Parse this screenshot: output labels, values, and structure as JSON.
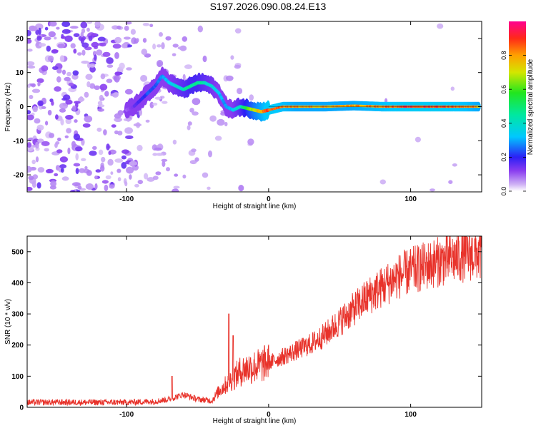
{
  "title": "S197.2026.090.08.24.E13",
  "chart_data": [
    {
      "type": "heatmap",
      "xlabel": "Height of straight line (km)",
      "ylabel": "Frequency (Hz)",
      "xlim": [
        -170,
        150
      ],
      "ylim": [
        -25,
        25
      ],
      "xticks": [
        -100,
        0,
        100
      ],
      "xtick_labels": [
        "-100",
        "0",
        "100"
      ],
      "yticks": [
        -20,
        -10,
        0,
        10,
        20
      ],
      "ytick_labels": [
        "-20",
        "-10",
        "0",
        "10",
        "20"
      ],
      "colorbar": {
        "label": "Normalized spectral amplitude",
        "range": [
          0,
          1
        ],
        "ticks": [
          0.0,
          0.2,
          0.4,
          0.6,
          0.8
        ],
        "tick_labels": [
          "0.0",
          "0.2",
          "0.4",
          "0.6",
          "0.8"
        ]
      },
      "ridge": {
        "x": [
          -100,
          -95,
          -90,
          -85,
          -80,
          -75,
          -70,
          -65,
          -60,
          -55,
          -50,
          -45,
          -40,
          -35,
          -30,
          -25,
          -20,
          -15,
          -10,
          -5,
          0,
          10,
          20,
          40,
          60,
          80,
          100,
          120,
          140,
          148
        ],
        "y": [
          -1,
          0,
          2,
          4,
          6,
          9,
          7,
          6,
          5,
          6,
          7,
          7,
          6,
          4,
          0,
          -1,
          0,
          -0.5,
          -1,
          -1.5,
          -1,
          0,
          0,
          0,
          0.3,
          0,
          0,
          0,
          0,
          0
        ],
        "amplitude": [
          0.1,
          0.15,
          0.2,
          0.25,
          0.25,
          0.3,
          0.35,
          0.4,
          0.45,
          0.5,
          0.5,
          0.45,
          0.4,
          0.35,
          0.3,
          0.35,
          0.45,
          0.6,
          0.75,
          0.85,
          0.95,
          0.9,
          0.85,
          0.85,
          0.85,
          0.9,
          0.95,
          0.95,
          0.9,
          0.85
        ]
      }
    },
    {
      "type": "line",
      "xlabel": "Height of straight line (km)",
      "ylabel": "SNR (10 * v/v)",
      "xlim": [
        -170,
        150
      ],
      "ylim": [
        0,
        550
      ],
      "xticks": [
        -100,
        0,
        100
      ],
      "xtick_labels": [
        "-100",
        "0",
        "100"
      ],
      "yticks": [
        0,
        100,
        200,
        300,
        400,
        500
      ],
      "ytick_labels": [
        "0",
        "100",
        "200",
        "300",
        "400",
        "500"
      ],
      "color": "#e8322a",
      "series": [
        {
          "name": "SNR",
          "x": [
            -170,
            -150,
            -120,
            -100,
            -80,
            -70,
            -60,
            -50,
            -40,
            -35,
            -30,
            -25,
            -20,
            -15,
            -10,
            -5,
            0,
            10,
            20,
            30,
            40,
            50,
            60,
            70,
            80,
            90,
            100,
            110,
            120,
            130,
            140,
            150
          ],
          "y": [
            15,
            15,
            15,
            15,
            18,
            25,
            40,
            25,
            20,
            50,
            70,
            90,
            110,
            120,
            125,
            130,
            140,
            160,
            180,
            200,
            230,
            270,
            310,
            350,
            380,
            410,
            430,
            445,
            460,
            470,
            480,
            485
          ],
          "spikes": [
            {
              "x": -68,
              "y": 100
            },
            {
              "x": -28,
              "y": 300
            },
            {
              "x": -25,
              "y": 230
            }
          ]
        }
      ]
    }
  ]
}
